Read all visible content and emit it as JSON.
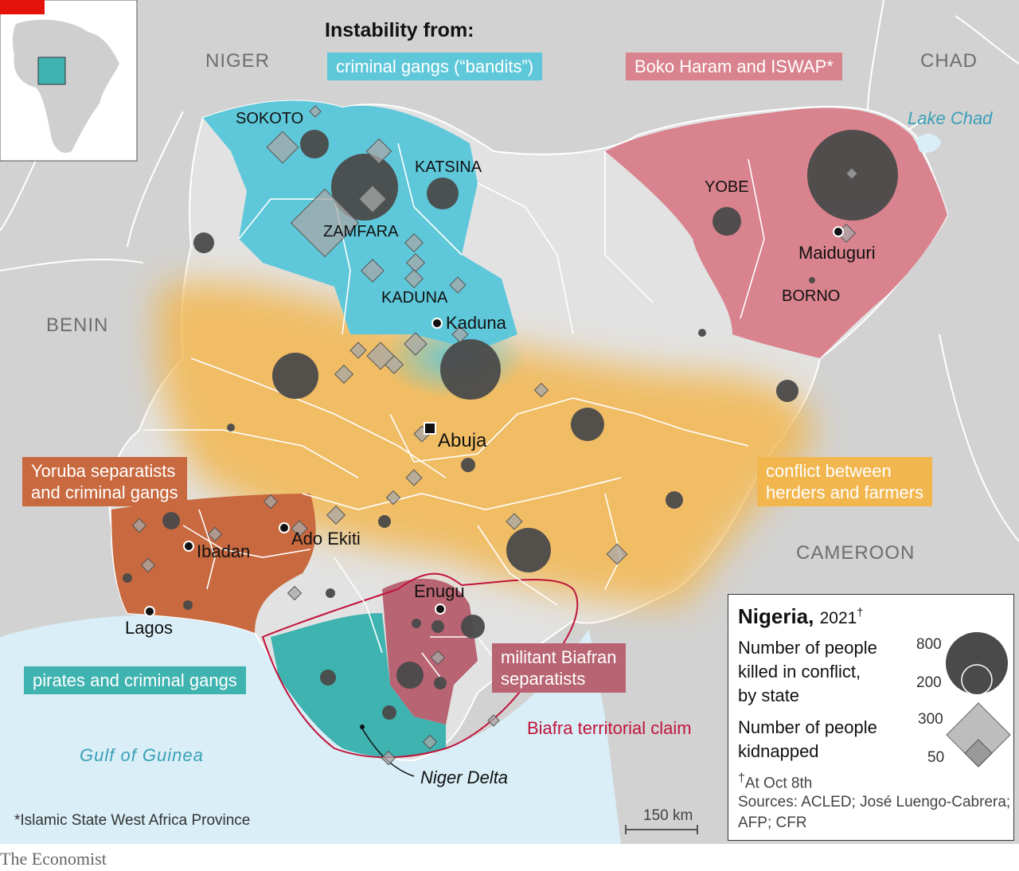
{
  "heading": "Instability from:",
  "categories": {
    "bandits": {
      "label": "criminal gangs (“bandits”)",
      "color": "#5ec8da"
    },
    "boko": {
      "label": "Boko Haram and ISWAP*",
      "color": "#d9838e"
    },
    "yoruba": {
      "label_line1": "Yoruba separatists",
      "label_line2": "and criminal gangs",
      "color": "#c8693f"
    },
    "herders": {
      "label_line1": "conflict between",
      "label_line2": "herders and farmers",
      "color": "#f2b64f"
    },
    "pirates": {
      "label": "pirates and criminal gangs",
      "color": "#3fb3b0"
    },
    "biafra": {
      "label_line1": "militant Biafran",
      "label_line2": "separatists",
      "color": "#b86472"
    }
  },
  "countries": [
    "NIGER",
    "CHAD",
    "BENIN",
    "CAMEROON"
  ],
  "states": [
    "SOKOTO",
    "KATSINA",
    "ZAMFARA",
    "KADUNA",
    "YOBE",
    "BORNO"
  ],
  "cities": [
    "Kaduna",
    "Abuja",
    "Maiduguri",
    "Ibadan",
    "Ado Ekiti",
    "Lagos",
    "Enugu"
  ],
  "water": {
    "lake": "Lake Chad",
    "gulf": "Gulf of Guinea"
  },
  "annotations": {
    "biafra_claim": "Biafra territorial claim",
    "niger_delta": "Niger Delta"
  },
  "scale_bar": "150 km",
  "footnote": "*Islamic State West Africa Province",
  "legend": {
    "title": "Nigeria,",
    "year": "2021",
    "dagger": "†",
    "killed_line1": "Number of people",
    "killed_line2": "killed in conflict,",
    "killed_line3": "by state",
    "killed_max": "800",
    "killed_min": "200",
    "kidnapped_line1": "Number of people",
    "kidnapped_line2": "kidnapped",
    "kidnapped_max": "300",
    "kidnapped_min": "50",
    "asof": "At Oct 8th",
    "sources_line1": "Sources: ACLED; José Luengo-Cabrera;",
    "sources_line2": "AFP; CFR"
  },
  "brand": "The Economist",
  "colors": {
    "marker": "#4a4a4a",
    "kidnap": "#a8a8a8",
    "claim": "#c0143c",
    "land": "#d4d4d4",
    "nigeria_base": "#e2e2e2",
    "sea": "#d8edf5"
  }
}
